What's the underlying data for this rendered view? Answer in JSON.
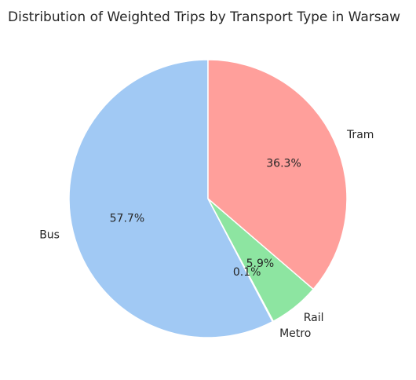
{
  "chart_data": {
    "type": "pie",
    "title": "Distribution of Weighted Trips by Transport Type in Warsaw",
    "categories": [
      "Bus",
      "Metro",
      "Rail",
      "Tram"
    ],
    "values": [
      57.7,
      0.1,
      5.9,
      36.3
    ],
    "value_labels": [
      "57.7%",
      "0.1%",
      "5.9%",
      "36.3%"
    ],
    "colors": [
      "#a1c9f4",
      "#ffb482",
      "#8de5a1",
      "#ff9f9b"
    ],
    "start_angle": 90,
    "counterclockwise": true
  }
}
